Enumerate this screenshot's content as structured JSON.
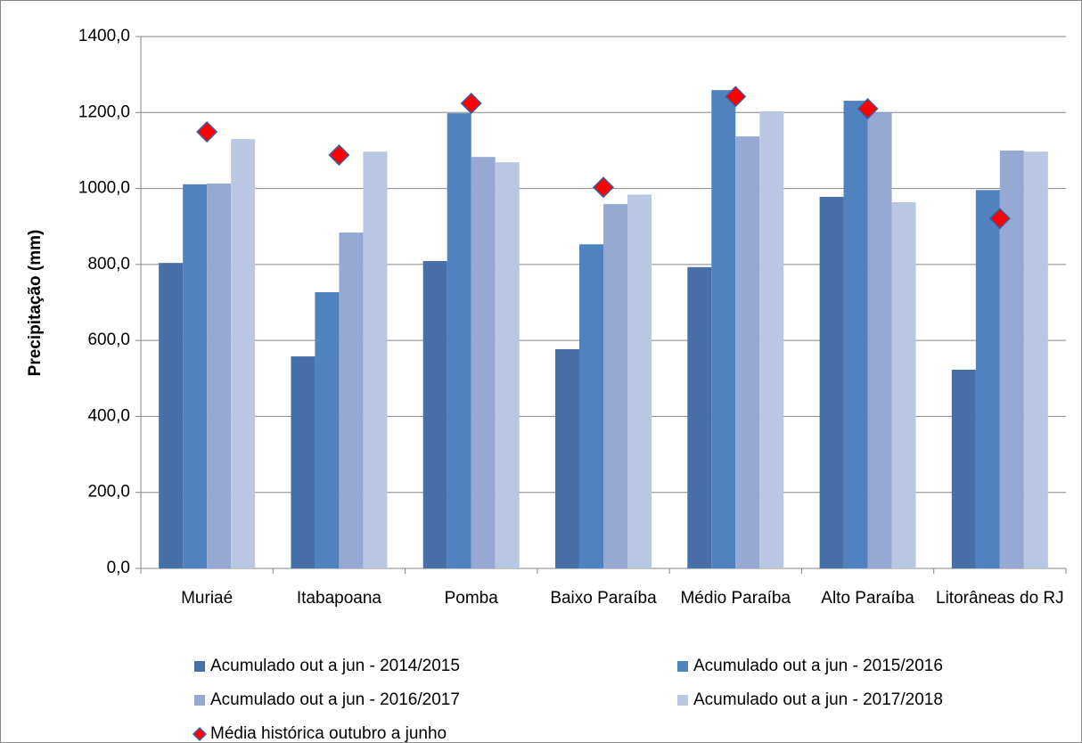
{
  "chart_data": {
    "type": "bar",
    "y_label": "Precipitação (mm)",
    "categories": [
      "Muriaé",
      "Itabapoana",
      "Pomba",
      "Baixo Paraíba",
      "Médio Paraíba",
      "Alto Paraíba",
      "Litorâneas do RJ"
    ],
    "series": [
      {
        "name": "Acumulado out a jun - 2014/2015",
        "color": "#4770a8",
        "values": [
          804,
          558,
          809,
          577,
          793,
          978,
          523
        ]
      },
      {
        "name": "Acumulado out a jun - 2015/2016",
        "color": "#5082c0",
        "values": [
          1011,
          727,
          1198,
          853,
          1259,
          1231,
          996
        ]
      },
      {
        "name": "Acumulado out a jun - 2016/2017",
        "color": "#96a9d2",
        "values": [
          1013,
          884,
          1083,
          959,
          1137,
          1200,
          1100
        ]
      },
      {
        "name": "Acumulado out a jun - 2017/2018",
        "color": "#bac7e2",
        "values": [
          1130,
          1097,
          1069,
          984,
          1203,
          964,
          1097
        ]
      },
      {
        "name": "Média histórica outubro a junho",
        "color": "#ff0000",
        "marker": "diamond",
        "values": [
          1149,
          1088,
          1224,
          1003,
          1242,
          1210,
          921
        ]
      }
    ],
    "ylim": [
      0,
      1400
    ],
    "yticks": [
      {
        "value": 0,
        "label": "0,0"
      },
      {
        "value": 200,
        "label": "200,0"
      },
      {
        "value": 400,
        "label": "400,0"
      },
      {
        "value": 600,
        "label": "600,0"
      },
      {
        "value": 800,
        "label": "800,0"
      },
      {
        "value": 1000,
        "label": "1000,0"
      },
      {
        "value": 1200,
        "label": "1200,0"
      },
      {
        "value": 1400,
        "label": "1400,0"
      }
    ],
    "grid": true
  }
}
